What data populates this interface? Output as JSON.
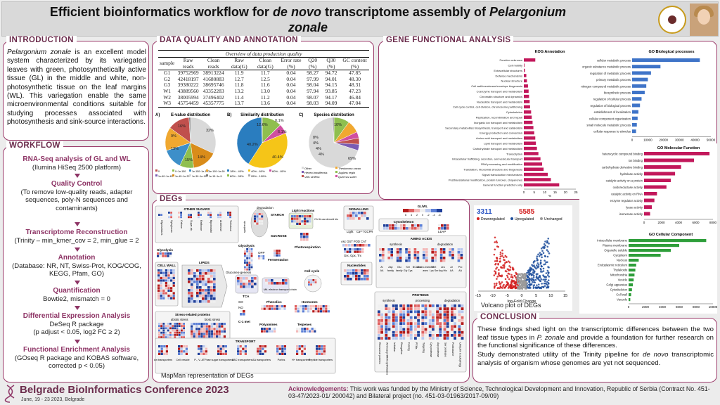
{
  "header": {
    "title_part1": "Efficient bioinformatics workflow for ",
    "title_italic1": "de novo",
    "title_part2": " transcriptome assembly of ",
    "title_italic2": "Pelargonium",
    "title_line2": "zonale",
    "logo_icon": "conference-logo-icon",
    "photo_icon": "author-photo"
  },
  "introduction": {
    "title": "INTRODUCTION",
    "species": "Pelargonium zonale",
    "text": " is an excellent model system characterized by its variegated leaves with green, photosynthetically active tissue (GL) in the middle and white, non-photosynthetic tissue on the leaf margins (WL). This variegation enable the same microenvironmental conditions suitable for studying processes associated with photosynthesis and sink-source interactions."
  },
  "workflow": {
    "title": "WORKFLOW",
    "steps": [
      {
        "heading": "RNA-Seq analysis of GL and WL",
        "detail": "(Ilumina HiSeq 2500 platform)"
      },
      {
        "heading": "Quality Control",
        "detail": "(To remove low-quality reads, adapter sequences, poly-N sequences and contaminants)"
      },
      {
        "heading": "Transcriptome Reconstruction",
        "detail": "(Trinity – min_kmer_cov = 2, min_glue = 2"
      },
      {
        "heading": "Annotation",
        "detail": "(Database: NR, NT, Swiss-Prot, KOG/COG, KEGG, Pfam, GO)"
      },
      {
        "heading": "Quantification",
        "detail": "Bowtie2, mismatch = 0"
      },
      {
        "heading": "Differential Expression Analysis",
        "detail": "DeSeq R package",
        "detail2": "(p adjust < 0.05, log2 FC ≥ 2)"
      },
      {
        "heading": "Functional Enrichment Analysis",
        "detail": "(GOseq R package and KOBAS software, corrected p < 0.05)"
      }
    ]
  },
  "data_quality": {
    "title": "DATA QUALITY AND ANNOTATION",
    "table_caption": "Overview of data production quality",
    "headers": [
      "sample",
      "Raw reads",
      "Clean reads",
      "Raw data(G)",
      "Clean data(G)",
      "Error rate (%)",
      "Q20 (%)",
      "Q30 (%)",
      "GC content (%)"
    ],
    "rows": [
      [
        "G1",
        "39752969",
        "38913224",
        "11.9",
        "11.7",
        "0.04",
        "98.27",
        "94.72",
        "47.85"
      ],
      [
        "G2",
        "42418197",
        "41680883",
        "12.7",
        "12.5",
        "0.04",
        "97.99",
        "94.01",
        "48.30"
      ],
      [
        "G3",
        "39380222",
        "38695746",
        "11.8",
        "11.6",
        "0.04",
        "98.04",
        "94.15",
        "48.31"
      ],
      [
        "W1",
        "43889560",
        "43352283",
        "13.2",
        "13.0",
        "0.04",
        "97.94",
        "93.85",
        "47.23"
      ],
      [
        "W2",
        "38005994",
        "37496402",
        "11.4",
        "11.2",
        "0.04",
        "98.07",
        "94.17",
        "46.84"
      ],
      [
        "W3",
        "45754459",
        "45357775",
        "13.7",
        "13.6",
        "0.04",
        "98.03",
        "94.09",
        "47.04"
      ]
    ],
    "pies": [
      {
        "letter": "A)",
        "title": "E-value distribution",
        "labels": [
          "32%",
          "16%",
          "9%",
          "13%",
          "15%",
          "14%"
        ]
      },
      {
        "letter": "B)",
        "title": "Similarity distribution",
        "labels": [
          "12.6%",
          "0.1%",
          "6.1%",
          "40.2%",
          "40.4%"
        ]
      },
      {
        "letter": "C)",
        "title": "Species distribution",
        "labels": [
          "10%",
          "8%",
          "4%",
          "4%",
          "4%",
          "69%"
        ]
      }
    ],
    "pie_legends": {
      "a": [
        "0",
        "0~1e-150",
        "1e-150~1e-100",
        "1e-100~1e-60",
        "1e-60~1e-45",
        "1e-45~1e-30",
        "1e-30~1e-15",
        "1e-15~1e-5"
      ],
      "b": [
        "18% - 40%",
        "40% - 60%",
        "60% - 80%",
        "80% - 95%",
        "95% - 100%"
      ],
      "c": [
        "Other",
        "Theobroma cacao",
        "Hevea brasiliensis",
        "Juglans regia",
        "Vitis vinifera",
        "Quercus suber"
      ]
    }
  },
  "gene_functional": {
    "title": "GENE FUNCTIONAL ANALYSIS",
    "kog": {
      "title": "KOG Annotation",
      "xlabel": "%",
      "x_ticks": [
        "0",
        "5",
        "10",
        "15",
        "20",
        "25"
      ],
      "categories": [
        "Function unknown",
        "Cell motility",
        "Extracellular structures",
        "Defense mechanisms",
        "Nuclear structure",
        "Cell wall/membrane/envelope biogenesis",
        "Coenzyme transport and metabolism",
        "Chromatin structure and dynamics",
        "Nucleotide transport and metabolism",
        "Cell cycle control, cell division, chromosome partitioning",
        "Cytoskeleton",
        "Replication, recombination and repair",
        "Inorganic ion transport and metabolism",
        "Secondary metabolites biosynthesis, transport and catabolism",
        "Energy production and conversion",
        "Amino acid transport and metabolism",
        "Lipid transport and metabolism",
        "Carbohydrate transport and metabolism",
        "Transcription",
        "Intracellular trafficking, secretion, and vesicular transport",
        "RNA processing and modification",
        "Translation, ribosomal structure and biogenesis",
        "Signal transduction mechanisms",
        "Posttranslational modification, protein turnover, chaperones",
        "General function prediction only"
      ],
      "values": [
        5.5,
        0.3,
        0.5,
        1.2,
        1.5,
        2.0,
        2.3,
        2.5,
        2.8,
        3.0,
        3.5,
        3.8,
        4.2,
        4.6,
        5.0,
        5.5,
        5.8,
        6.3,
        7.0,
        8.0,
        8.8,
        9.5,
        11.5,
        13.0,
        17.0
      ],
      "max": 25,
      "color": "#c2185b"
    },
    "go_bp": {
      "title": "GO Biological processes",
      "x_ticks": [
        "0",
        "10000",
        "20000",
        "30000",
        "40000",
        "50000"
      ],
      "categories": [
        "cellular metabolic process",
        "organic substance metabolic process",
        "regulation of metabolic process",
        "primary metabolic process",
        "nitrogen compound metabolic process",
        "biosynthetic process",
        "regulation of cellular process",
        "regulation of biological process",
        "establishment of localization",
        "cellular component organization",
        "small molecule metabolic process",
        "cellular response to stimulus"
      ],
      "values": [
        43000,
        18000,
        12000,
        10000,
        9000,
        8000,
        6000,
        5000,
        4000,
        3500,
        3000,
        2500
      ],
      "max": 50000,
      "color": "#3f74c8"
    },
    "go_mf": {
      "title": "GO Molecular Function",
      "x_ticks": [
        "0",
        "2000",
        "4000",
        "6000",
        "8000"
      ],
      "categories": [
        "heterocyclic compound binding",
        "ion binding",
        "carbohydrate derivative binding",
        "hydrolase activity",
        "catalytic activity on a protein",
        "oxidoreductase activity",
        "catalytic activity on RNA",
        "enzyme regulator activity",
        "lyase activity",
        "isomerase activity"
      ],
      "values": [
        7600,
        5800,
        4300,
        3600,
        3100,
        2600,
        1500,
        1200,
        900,
        700
      ],
      "max": 8000,
      "color": "#c2185b"
    },
    "go_cc": {
      "title": "GO Cellular Component",
      "x_ticks": [
        "0",
        "2000",
        "4000",
        "6000",
        "8000",
        "10000"
      ],
      "categories": [
        "Intracellular membrane",
        "Plasma membrane",
        "Organelle soluble",
        "Cytoplasm",
        "Nucleus",
        "Endoplasmic reticulum",
        "Thylakoids",
        "Mitochondria",
        "Vesicle",
        "Golgi apparatus",
        "Cytoskeleton",
        "Cell wall",
        "Vacuole"
      ],
      "values": [
        9200,
        6000,
        5000,
        3800,
        1200,
        900,
        800,
        700,
        600,
        500,
        400,
        300,
        200
      ],
      "max": 10000,
      "color": "#2e9e3a"
    }
  },
  "degs": {
    "title": "DEGs",
    "mapman_caption": "MapMan representation of DEGs",
    "labels": {
      "other_sugars": "OTHER SUGARS",
      "degradation": "degradation",
      "starch": "STARCH",
      "sucrose": "SUCROSE",
      "synthesis": "synthesis",
      "light_reactions": "Light reactions",
      "chl": "Chl & carotenoid biosynthesis",
      "photorespiration": "Photorespiration",
      "signalling": "SIGNALLING",
      "cytoskeleton": "Cytoskeleton",
      "amino_acids": "AMINO ACIDS",
      "glycolysis": "Glycolysis",
      "fermentation": "Fermentation",
      "opp": "OPP",
      "cell_wall": "CELL WALL",
      "lipids": "LIPIDS",
      "gluconeo": "Gluconeo-genesis",
      "tca": "TCA",
      "mit": "Mit. electron transport chain",
      "cell_cycle": "Cell cycle",
      "nucleotides": "Nucleotides",
      "stress": "Stress-related proteins",
      "abiotic": "abiotic stress",
      "biotic": "biotic stress",
      "c1": "C-1 met",
      "phenolics": "Phenolics",
      "hormones": "Hormones",
      "polyamines": "Polyamines",
      "terpenes": "Terpenes",
      "transport": "TRANSPORT",
      "proteins": "PROTEINS",
      "processing": "processing",
      "so": "SO",
      "no": "NO",
      "leap": "LEAP",
      "light": "Light",
      "ca": "Ca²⁺/ GCPR",
      "asc": "Asc  GST  POD  CAT",
      "grx": "Grx, Gpx, Trx",
      "gl_wl": "GL/WL",
      "scale": [
        "6",
        "4",
        "2",
        "0",
        "-2",
        "-4",
        "-6"
      ]
    },
    "transport_items": [
      "ion transporters",
      "Cell vesicle",
      "P-, V- ATPase",
      "sugar transporters",
      "ABC transporters",
      "AA transporters",
      "Porins",
      "H+ transporters",
      "Peptide transporters"
    ],
    "amino_items": [
      "Ar AA",
      "Asp family",
      "Glu family",
      "Ser Gly Cys",
      "BCAAs",
      "Amino-transfer ases",
      "Met Lys Ser",
      "Leu Arg His",
      "Ar AA",
      "Pro AA"
    ],
    "other_sugar_items": [
      "Glycosidases",
      "Xyloglucan",
      "Callose",
      "Sugar alc.",
      "Raffinose",
      "Myoinositol",
      "Arabinose",
      "Trehalose"
    ],
    "protein_items": [
      "Ribosomal proteins",
      "Aminoacyl tRNA synthetases",
      "Initiation",
      "Elongation",
      "Folding",
      "PTMs",
      "Targeting",
      "Cys protease",
      "Asp protease",
      "Ser protease",
      "Proteasome",
      "Ubiquitin & autophagy"
    ],
    "volcano": {
      "caption": "Volcano plot of DEGs",
      "down_count": "3311",
      "up_count": "5585",
      "legend": [
        "Downregulated",
        "Upregulated",
        "Unchanged"
      ],
      "xlabel": "log₂Fold Change",
      "x_ticks": [
        "-15",
        "-10",
        "-5",
        "0",
        "5",
        "10",
        "15"
      ],
      "colors": {
        "down": "#d32020",
        "up": "#1f4f9c",
        "unchanged": "#9a9a9a"
      }
    }
  },
  "conclusion": {
    "title": "CONCLUSION",
    "p1a": "These findings shed light on the transcriptomic differences between the two leaf tissue types in ",
    "p1b": "P. zonale",
    "p1c": " and provide a foundation for further research on the functional significance of these differences.",
    "p2a": "Study demonstrated utility of the Trinity pipeline for ",
    "p2b": "de novo",
    "p2c": " transcriptomic analysis of organism whose genomes are yet not sequenced."
  },
  "footer": {
    "conference": "Belgrade BioInformatics Conference 2023",
    "date": "June, 19 - 23 2023, Belgrade",
    "ack_label": "Acknowledgements:",
    "ack_text": " This work was funded by the Ministry of Science, Technological Development and Innovation, Republic of Serbia (Contract No. 451-03-47/2023-01/ 200042) and Bilateral project (no. 451-03-01963/2017-09/09)"
  },
  "colors": {
    "accent": "#8e3566",
    "panel_border": "#9b3b6a",
    "up_red": "#d32020",
    "down_blue": "#2a55c4"
  }
}
